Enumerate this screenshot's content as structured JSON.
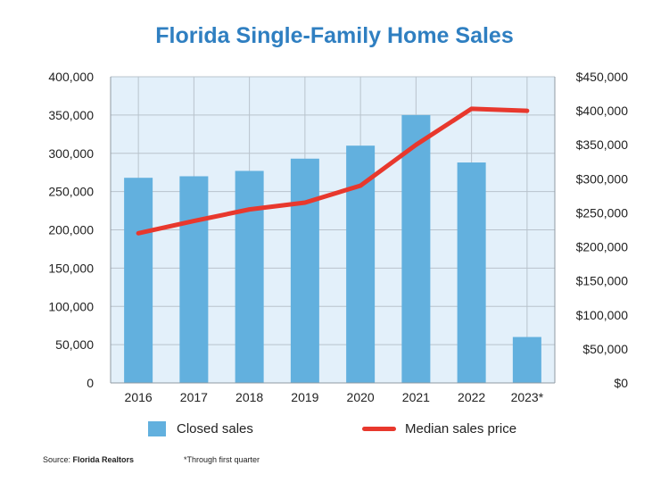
{
  "chart_data": {
    "type": "bar",
    "title": "Florida Single-Family Home Sales",
    "categories": [
      "2016",
      "2017",
      "2018",
      "2019",
      "2020",
      "2021",
      "2022",
      "2023*"
    ],
    "series": [
      {
        "name": "Closed sales",
        "type": "bar",
        "axis": "left",
        "color": "#62b0de",
        "values": [
          268000,
          270000,
          277000,
          293000,
          310000,
          350000,
          288000,
          60000
        ]
      },
      {
        "name": "Median sales price",
        "type": "line",
        "axis": "right",
        "color": "#e8382d",
        "values": [
          220000,
          238000,
          255000,
          265000,
          290000,
          350000,
          403000,
          400000
        ]
      }
    ],
    "y_left": {
      "ylim": [
        0,
        400000
      ],
      "ticks": [
        "0",
        "50,000",
        "100,000",
        "150,000",
        "200,000",
        "250,000",
        "300,000",
        "350,000",
        "400,000"
      ]
    },
    "y_right": {
      "ylim": [
        0,
        450000
      ],
      "ticks": [
        "$0",
        "$50,000",
        "$100,000",
        "$150,000",
        "$200,000",
        "$250,000",
        "$300,000",
        "$350,000",
        "$400,000",
        "$450,000"
      ]
    },
    "grid": true,
    "legend_position": "bottom",
    "plot_background": "#e3f0fa",
    "source_label": "Source:",
    "source_name": "Florida Realtors",
    "footnote": "*Through first quarter"
  }
}
